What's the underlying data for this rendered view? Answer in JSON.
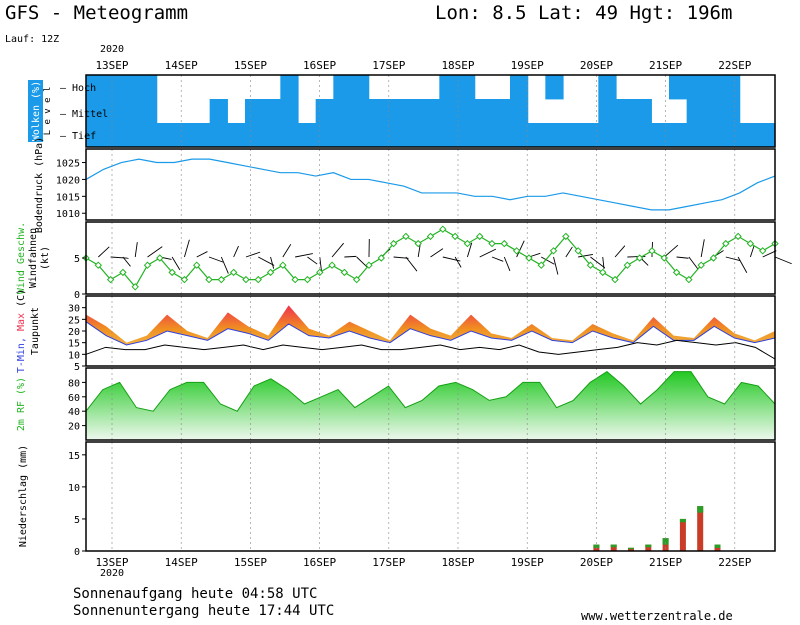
{
  "header": {
    "title": "GFS - Meteogramm",
    "location": "Lon: 8.5 Lat: 49 Hgt: 196m",
    "run": "Lauf: 12Z",
    "year": "2020"
  },
  "footer": {
    "sunrise": "Sonnenaufgang heute 04:58 UTC",
    "sunset": "Sonnenuntergang heute 17:44 UTC",
    "site": "www.wetterzentrale.de"
  },
  "dates": [
    "13SEP",
    "14SEP",
    "15SEP",
    "16SEP",
    "17SEP",
    "18SEP",
    "19SEP",
    "20SEP",
    "21SEP",
    "22SEP"
  ],
  "colors": {
    "cloud": "#1a9ae8",
    "pressure": "#1a9ae8",
    "wind": "#22b422",
    "tmax": "#f03050",
    "tmin": "#3040e0",
    "dewpoint": "#000000",
    "rh_top": "#22c822",
    "precip_red": "#c83c28",
    "precip_green": "#28a028"
  },
  "chart_data": [
    {
      "id": "clouds",
      "type": "heatmap",
      "ylabel_parts": [
        "Wolken",
        "(%)"
      ],
      "level_label": "Level",
      "levels": [
        "Hoch",
        "Mittel",
        "Tief"
      ],
      "note": "cloud cover per level, 0 = clear, 1 = overcast, every 6 h from 13SEP 00Z",
      "hoch": [
        1,
        1,
        1,
        1,
        0,
        0,
        0,
        0,
        0,
        0,
        0,
        1,
        0,
        0,
        1,
        1,
        0,
        0,
        0,
        0,
        1,
        1,
        0,
        0,
        1,
        0,
        1,
        0,
        0,
        1,
        0,
        0,
        0,
        1,
        1,
        1,
        1,
        0,
        0
      ],
      "mittel": [
        1,
        1,
        1,
        1,
        0,
        0,
        0,
        1,
        0,
        1,
        1,
        1,
        0,
        1,
        1,
        1,
        1,
        1,
        1,
        1,
        1,
        1,
        1,
        1,
        1,
        0,
        0,
        0,
        0,
        1,
        1,
        1,
        0,
        0,
        1,
        1,
        1,
        0,
        0
      ],
      "tief": [
        1,
        1,
        1,
        1,
        1,
        1,
        1,
        1,
        1,
        1,
        1,
        1,
        1,
        1,
        1,
        1,
        1,
        1,
        1,
        1,
        1,
        1,
        1,
        1,
        1,
        1,
        1,
        1,
        1,
        1,
        1,
        1,
        1,
        1,
        1,
        1,
        1,
        1,
        1
      ]
    },
    {
      "id": "pressure",
      "type": "line",
      "ylabel_parts": [
        "Bodendruck",
        "(hPa)"
      ],
      "yticks": [
        1010,
        1015,
        1020,
        1025
      ],
      "ylim": [
        1008,
        1029
      ],
      "values": [
        1020,
        1023,
        1025,
        1026,
        1025,
        1025,
        1026,
        1026,
        1025,
        1024,
        1023,
        1022,
        1022,
        1021,
        1022,
        1020,
        1020,
        1019,
        1018,
        1016,
        1016,
        1016,
        1015,
        1015,
        1014,
        1015,
        1015,
        1016,
        1015,
        1014,
        1013,
        1012,
        1011,
        1011,
        1012,
        1013,
        1014,
        1016,
        1019,
        1021
      ]
    },
    {
      "id": "wind",
      "type": "line",
      "ylabel_parts": [
        "Wind Geschw.",
        "Windfahnen",
        "(kt)"
      ],
      "yticks": [
        0,
        5
      ],
      "ylim": [
        0,
        10
      ],
      "values": [
        5,
        4,
        2,
        3,
        1,
        4,
        5,
        3,
        2,
        4,
        2,
        2,
        3,
        2,
        2,
        3,
        4,
        2,
        2,
        3,
        4,
        3,
        2,
        4,
        5,
        7,
        8,
        7,
        8,
        9,
        8,
        7,
        8,
        7,
        7,
        6,
        5,
        4,
        6,
        8,
        6,
        4,
        3,
        2,
        4,
        5,
        6,
        5,
        3,
        2,
        4,
        5,
        7,
        8,
        7,
        6,
        7
      ]
    },
    {
      "id": "temperature",
      "type": "area",
      "ylabel_parts": [
        "T-Min,",
        "Max",
        "(C)",
        "Taupunkt"
      ],
      "yticks": [
        5,
        10,
        15,
        20,
        25,
        30
      ],
      "ylim": [
        5,
        35
      ],
      "tmax": [
        27,
        22,
        15,
        18,
        27,
        20,
        17,
        28,
        22,
        18,
        31,
        21,
        18,
        24,
        20,
        16,
        27,
        21,
        18,
        27,
        19,
        17,
        23,
        17,
        16,
        23,
        19,
        16,
        26,
        18,
        17,
        26,
        19,
        16,
        20
      ],
      "tmin": [
        24,
        18,
        14,
        16,
        20,
        18,
        16,
        21,
        19,
        16,
        23,
        18,
        17,
        20,
        17,
        15,
        21,
        18,
        16,
        20,
        17,
        16,
        20,
        16,
        15,
        20,
        17,
        15,
        22,
        16,
        16,
        22,
        17,
        15,
        17
      ],
      "dewpoint": [
        10,
        13,
        12,
        12,
        14,
        13,
        12,
        13,
        14,
        12,
        14,
        13,
        12,
        13,
        14,
        12,
        12,
        13,
        14,
        12,
        13,
        12,
        14,
        11,
        10,
        11,
        12,
        13,
        15,
        14,
        16,
        15,
        14,
        15,
        13,
        8
      ]
    },
    {
      "id": "humidity",
      "type": "area",
      "ylabel_parts": [
        "2m",
        "RF",
        "(%)"
      ],
      "yticks": [
        20,
        40,
        60,
        80
      ],
      "ylim": [
        0,
        100
      ],
      "values": [
        40,
        70,
        80,
        45,
        40,
        70,
        80,
        80,
        50,
        40,
        75,
        85,
        70,
        50,
        60,
        70,
        45,
        60,
        75,
        45,
        55,
        75,
        80,
        70,
        55,
        60,
        80,
        80,
        45,
        55,
        80,
        95,
        75,
        50,
        70,
        95,
        95,
        60,
        50,
        80,
        75,
        50
      ]
    },
    {
      "id": "precip",
      "type": "bar",
      "ylabel_parts": [
        "Niederschlag",
        "(mm)"
      ],
      "yticks": [
        0,
        5,
        10,
        15
      ],
      "ylim": [
        0,
        17
      ],
      "note": "amounts per 6 h, listed from 20SEP 00Z",
      "total": [
        1,
        1,
        0.5,
        1,
        2,
        5,
        7,
        1
      ],
      "convective": [
        0.5,
        0.6,
        0.3,
        0.6,
        1,
        4.5,
        6,
        0.5
      ]
    }
  ]
}
